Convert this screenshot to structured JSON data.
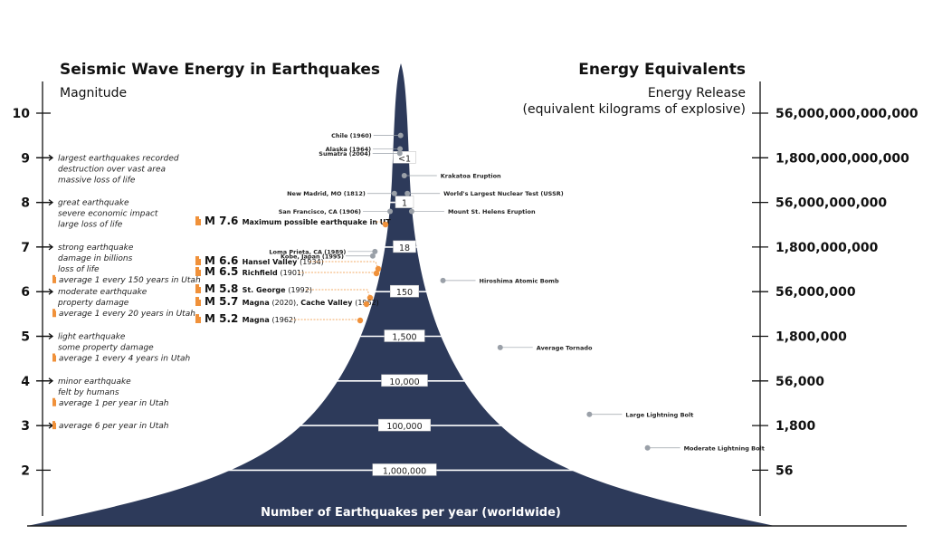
{
  "title_left": "Seismic Wave Energy in Earthquakes",
  "subtitle_left": "Magnitude",
  "title_right": "Energy Equivalents",
  "subtitle_right_1": "Energy Release",
  "subtitle_right_2": "(equivalent kilograms of explosive)",
  "bottom_label": "Number of Earthquakes per year (worldwide)",
  "colors": {
    "mountain": "#2d3a5a",
    "utah": "#f0913a",
    "dot": "#9aa0a8"
  },
  "magnitudes": [
    {
      "mag": 10,
      "energy": "56,000,000,000,000",
      "count": ""
    },
    {
      "mag": 9,
      "energy": "1,800,000,000,000",
      "count": "<1"
    },
    {
      "mag": 8,
      "energy": "56,000,000,000",
      "count": "1"
    },
    {
      "mag": 7,
      "energy": "1,800,000,000",
      "count": "18"
    },
    {
      "mag": 6,
      "energy": "56,000,000",
      "count": "150"
    },
    {
      "mag": 5,
      "energy": "1,800,000",
      "count": "1,500"
    },
    {
      "mag": 4,
      "energy": "56,000",
      "count": "10,000"
    },
    {
      "mag": 3,
      "energy": "1,800",
      "count": "100,000"
    },
    {
      "mag": 2,
      "energy": "56",
      "count": "1,000,000"
    }
  ],
  "descriptions": [
    {
      "mag": 9,
      "lines": [
        "largest earthquakes recorded",
        "destruction over vast area",
        "massive loss of life"
      ],
      "utah": ""
    },
    {
      "mag": 8,
      "lines": [
        "great earthquake",
        "severe economic impact",
        "large loss of life"
      ],
      "utah": ""
    },
    {
      "mag": 7,
      "lines": [
        "strong earthquake",
        "damage in billions",
        "loss of life"
      ],
      "utah": "average 1 every 150 years in Utah"
    },
    {
      "mag": 6,
      "lines": [
        "moderate earthquake",
        "property damage"
      ],
      "utah": "average 1 every 20 years in Utah"
    },
    {
      "mag": 5,
      "lines": [
        "light earthquake",
        "some property damage"
      ],
      "utah": "average 1 every 4 years in Utah"
    },
    {
      "mag": 4,
      "lines": [
        "minor earthquake",
        "felt by humans"
      ],
      "utah": "average 1 per year in Utah"
    },
    {
      "mag": 3,
      "lines": [],
      "utah": "average 6 per year in Utah"
    }
  ],
  "left_events": [
    {
      "label": "Chile (1960)",
      "mag": 9.5
    },
    {
      "label": "Alaska (1964)",
      "mag": 9.2
    },
    {
      "label": "Sumatra (2004)",
      "mag": 9.1
    },
    {
      "label": "New Madrid, MO (1812)",
      "mag": 8.2
    },
    {
      "label": "San Francisco, CA (1906)",
      "mag": 7.8
    },
    {
      "label": "Loma Prieta, CA (1989)",
      "mag": 6.9
    },
    {
      "label": "Kobe, Japan (1995)",
      "mag": 6.8
    }
  ],
  "right_events": [
    {
      "label": "Krakatoa Eruption",
      "mag": 8.6
    },
    {
      "label": "World's Largest Nuclear Test (USSR)",
      "mag": 8.2
    },
    {
      "label": "Mount St. Helens Eruption",
      "mag": 7.8
    },
    {
      "label": "Hiroshima Atomic Bomb",
      "mag": 6.25
    },
    {
      "label": "Average Tornado",
      "mag": 4.75
    },
    {
      "label": "Large Lightning Bolt",
      "mag": 3.25
    },
    {
      "label": "Moderate Lightning Bolt",
      "mag": 2.5
    }
  ],
  "utah_events": [
    {
      "m": "M 7.6",
      "name": "Maximum possible earthquake in UT",
      "year": "",
      "extra_name": "",
      "extra_year": ""
    },
    {
      "m": "M 6.6",
      "name": "Hansel Valley",
      "year": "(1934)",
      "extra_name": "",
      "extra_year": ""
    },
    {
      "m": "M 6.5",
      "name": "Richfield",
      "year": "(1901)",
      "extra_name": "",
      "extra_year": ""
    },
    {
      "m": "M 5.8",
      "name": "St. George",
      "year": "(1992)",
      "extra_name": "",
      "extra_year": ""
    },
    {
      "m": "M 5.7",
      "name": "Magna",
      "year": "(2020),",
      "extra_name": "Cache Valley",
      "extra_year": "(1962)"
    },
    {
      "m": "M 5.2",
      "name": "Magna",
      "year": "(1962)",
      "extra_name": "",
      "extra_year": ""
    }
  ]
}
